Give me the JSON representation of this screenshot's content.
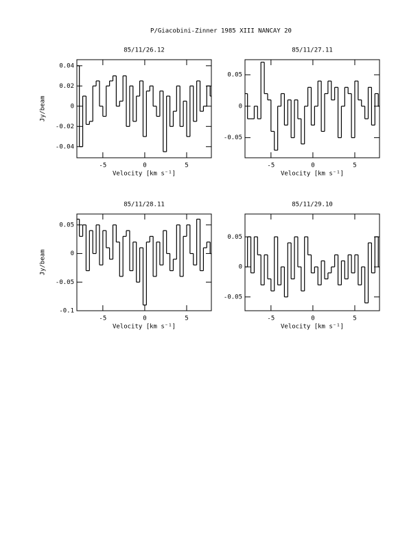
{
  "title": "P/Giacobini-Zinner 1985 XIII   NANCAY     20",
  "chart_data": [
    {
      "type": "line",
      "step": true,
      "title": "85/11/26.12",
      "xlabel": "Velocity [km s⁻¹]",
      "ylabel": "Jy/beam",
      "color": "#000000",
      "xlim": [
        -8.1,
        7.95
      ],
      "ylim": [
        -0.051,
        0.046
      ],
      "xticks": [
        -5,
        0,
        5
      ],
      "yticks": [
        -0.04,
        -0.02,
        0,
        0.02,
        0.04
      ],
      "x": [
        -8,
        -7.6,
        -7.2,
        -6.8,
        -6.4,
        -6,
        -5.6,
        -5.2,
        -4.8,
        -4.4,
        -4,
        -3.6,
        -3.2,
        -2.8,
        -2.4,
        -2,
        -1.6,
        -1.2,
        -0.8,
        -0.4,
        0,
        0.4,
        0.8,
        1.2,
        1.6,
        2,
        2.4,
        2.8,
        3.2,
        3.6,
        4,
        4.4,
        4.8,
        5.2,
        5.6,
        6,
        6.4,
        6.8,
        7.2,
        7.6,
        8
      ],
      "values": [
        0.04,
        -0.04,
        0.01,
        -0.018,
        -0.015,
        0.02,
        0.025,
        0.0,
        -0.01,
        0.02,
        0.025,
        0.03,
        0.0,
        0.005,
        0.03,
        -0.02,
        0.02,
        -0.015,
        0.01,
        0.025,
        -0.03,
        0.015,
        0.02,
        0.0,
        -0.01,
        0.015,
        -0.045,
        0.01,
        -0.02,
        -0.005,
        0.02,
        -0.02,
        0.005,
        -0.03,
        0.02,
        -0.015,
        0.025,
        -0.005,
        0.0,
        0.02,
        0.01
      ]
    },
    {
      "type": "line",
      "step": true,
      "title": "85/11/27.11",
      "xlabel": "Velocity [km s⁻¹]",
      "color": "#000000",
      "xlim": [
        -8.1,
        7.95
      ],
      "ylim": [
        -0.082,
        0.074
      ],
      "xticks": [
        -5,
        0,
        5
      ],
      "yticks": [
        -0.05,
        0,
        0.05
      ],
      "x": [
        -8,
        -7.6,
        -7.2,
        -6.8,
        -6.4,
        -6,
        -5.6,
        -5.2,
        -4.8,
        -4.4,
        -4,
        -3.6,
        -3.2,
        -2.8,
        -2.4,
        -2,
        -1.6,
        -1.2,
        -0.8,
        -0.4,
        0,
        0.4,
        0.8,
        1.2,
        1.6,
        2,
        2.4,
        2.8,
        3.2,
        3.6,
        4,
        4.4,
        4.8,
        5.2,
        5.6,
        6,
        6.4,
        6.8,
        7.2,
        7.6,
        8
      ],
      "values": [
        0.02,
        -0.02,
        -0.02,
        0.0,
        -0.02,
        0.07,
        0.02,
        0.01,
        -0.04,
        -0.07,
        0.0,
        0.02,
        -0.03,
        0.01,
        -0.05,
        0.01,
        -0.02,
        -0.06,
        0.0,
        0.03,
        -0.03,
        0.0,
        0.04,
        -0.04,
        0.02,
        0.04,
        0.01,
        0.03,
        -0.05,
        0.0,
        0.03,
        0.02,
        -0.05,
        0.04,
        0.01,
        0.0,
        -0.02,
        0.03,
        -0.03,
        0.02,
        0.0
      ]
    },
    {
      "type": "line",
      "step": true,
      "title": "85/11/28.11",
      "xlabel": "Velocity [km s⁻¹]",
      "ylabel": "Jy/beam",
      "color": "#000000",
      "xlim": [
        -8.1,
        7.95
      ],
      "ylim": [
        -0.1,
        0.069
      ],
      "xticks": [
        -5,
        0,
        5
      ],
      "yticks": [
        -0.1,
        -0.05,
        0,
        0.05
      ],
      "x": [
        -8,
        -7.6,
        -7.2,
        -6.8,
        -6.4,
        -6,
        -5.6,
        -5.2,
        -4.8,
        -4.4,
        -4,
        -3.6,
        -3.2,
        -2.8,
        -2.4,
        -2,
        -1.6,
        -1.2,
        -0.8,
        -0.4,
        0,
        0.4,
        0.8,
        1.2,
        1.6,
        2,
        2.4,
        2.8,
        3.2,
        3.6,
        4,
        4.4,
        4.8,
        5.2,
        5.6,
        6,
        6.4,
        6.8,
        7.2,
        7.6,
        8
      ],
      "values": [
        0.06,
        0.03,
        0.05,
        -0.03,
        0.04,
        0.0,
        0.05,
        -0.02,
        0.04,
        0.01,
        -0.01,
        0.05,
        0.02,
        -0.04,
        0.03,
        0.04,
        -0.03,
        0.02,
        -0.05,
        0.01,
        -0.09,
        0.02,
        0.03,
        -0.04,
        0.02,
        -0.02,
        0.04,
        0.0,
        -0.03,
        -0.01,
        0.05,
        -0.04,
        0.03,
        0.05,
        0.0,
        -0.02,
        0.06,
        -0.03,
        0.01,
        0.02,
        0.0
      ]
    },
    {
      "type": "line",
      "step": true,
      "title": "85/11/29.10",
      "xlabel": "Velocity [km s⁻¹]",
      "color": "#000000",
      "xlim": [
        -8.1,
        7.95
      ],
      "ylim": [
        -0.073,
        0.088
      ],
      "xticks": [
        -5,
        0,
        5
      ],
      "yticks": [
        -0.05,
        0,
        0.05
      ],
      "x": [
        -8,
        -7.6,
        -7.2,
        -6.8,
        -6.4,
        -6,
        -5.6,
        -5.2,
        -4.8,
        -4.4,
        -4,
        -3.6,
        -3.2,
        -2.8,
        -2.4,
        -2,
        -1.6,
        -1.2,
        -0.8,
        -0.4,
        0,
        0.4,
        0.8,
        1.2,
        1.6,
        2,
        2.4,
        2.8,
        3.2,
        3.6,
        4,
        4.4,
        4.8,
        5.2,
        5.6,
        6,
        6.4,
        6.8,
        7.2,
        7.6,
        8
      ],
      "values": [
        0.0,
        0.05,
        -0.01,
        0.05,
        0.02,
        -0.03,
        0.02,
        -0.02,
        -0.04,
        0.05,
        -0.03,
        0.0,
        -0.05,
        0.04,
        -0.02,
        0.05,
        0.0,
        -0.04,
        0.05,
        0.02,
        -0.01,
        0.0,
        -0.03,
        0.01,
        -0.02,
        -0.01,
        0.0,
        0.02,
        -0.03,
        0.01,
        -0.02,
        0.02,
        -0.01,
        0.02,
        -0.03,
        0.0,
        -0.06,
        0.04,
        -0.01,
        0.05,
        0.0
      ]
    }
  ]
}
